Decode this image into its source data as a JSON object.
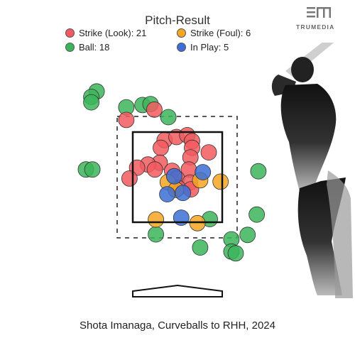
{
  "title": "Pitch-Result",
  "logo_text": "TRUMEDIA",
  "caption": "Shota Imanaga, Curveballs to RHH, 2024",
  "legend": [
    {
      "label": "Strike (Look): 21",
      "color": "#f25a5f"
    },
    {
      "label": "Strike (Foul): 6",
      "color": "#f5a623"
    },
    {
      "label": "Ball: 18",
      "color": "#3cb55a"
    },
    {
      "label": "In Play: 5",
      "color": "#3b6fd6"
    }
  ],
  "chart_data": {
    "type": "scatter",
    "title": "Pitch-Result",
    "xlabel": "",
    "ylabel": "",
    "xlim": [
      -2.0,
      2.5
    ],
    "ylim": [
      0.0,
      5.0
    ],
    "x_unit": "",
    "y_unit": "",
    "strike_zone": {
      "x": [
        -0.83,
        0.83
      ],
      "y": [
        1.5,
        3.5
      ]
    },
    "series": [
      {
        "name": "Strike (Look)",
        "color": "#f25a5f",
        "points": [
          [
            -0.43,
            4.0
          ],
          [
            -0.95,
            3.77
          ],
          [
            -0.24,
            3.32
          ],
          [
            -0.02,
            3.39
          ],
          [
            0.18,
            3.43
          ],
          [
            0.27,
            3.3
          ],
          [
            -0.31,
            3.15
          ],
          [
            0.27,
            3.15
          ],
          [
            0.58,
            3.05
          ],
          [
            -0.33,
            2.82
          ],
          [
            0.24,
            2.94
          ],
          [
            -0.55,
            2.78
          ],
          [
            -0.1,
            2.64
          ],
          [
            0.21,
            2.67
          ],
          [
            -0.75,
            2.71
          ],
          [
            -0.42,
            2.67
          ],
          [
            -0.01,
            2.47
          ],
          [
            0.23,
            2.38
          ],
          [
            -0.89,
            2.47
          ],
          [
            0.01,
            2.26
          ],
          [
            0.25,
            2.23
          ]
        ]
      },
      {
        "name": "Strike (Foul)",
        "color": "#f5a623",
        "points": [
          [
            -0.18,
            2.39
          ],
          [
            0.42,
            2.43
          ],
          [
            0.8,
            2.4
          ],
          [
            -0.4,
            1.56
          ],
          [
            0.37,
            1.48
          ],
          [
            -0.03,
            2.22
          ]
        ]
      },
      {
        "name": "Ball",
        "color": "#3cb55a",
        "points": [
          [
            -1.5,
            4.4
          ],
          [
            -1.6,
            4.28
          ],
          [
            -1.6,
            4.16
          ],
          [
            -0.95,
            4.05
          ],
          [
            -0.65,
            4.1
          ],
          [
            -0.5,
            4.12
          ],
          [
            -0.17,
            3.83
          ],
          [
            -1.7,
            2.67
          ],
          [
            -1.58,
            2.67
          ],
          [
            1.5,
            2.63
          ],
          [
            1.47,
            1.67
          ],
          [
            0.6,
            1.57
          ],
          [
            -0.4,
            1.23
          ],
          [
            1.3,
            1.22
          ],
          [
            1.0,
            1.12
          ],
          [
            0.42,
            0.94
          ],
          [
            1.0,
            0.85
          ],
          [
            1.08,
            0.81
          ]
        ]
      },
      {
        "name": "In Play",
        "color": "#3b6fd6",
        "points": [
          [
            -0.06,
            2.52
          ],
          [
            0.47,
            2.61
          ],
          [
            -0.19,
            2.12
          ],
          [
            0.1,
            2.15
          ],
          [
            0.07,
            1.6
          ]
        ]
      }
    ]
  }
}
